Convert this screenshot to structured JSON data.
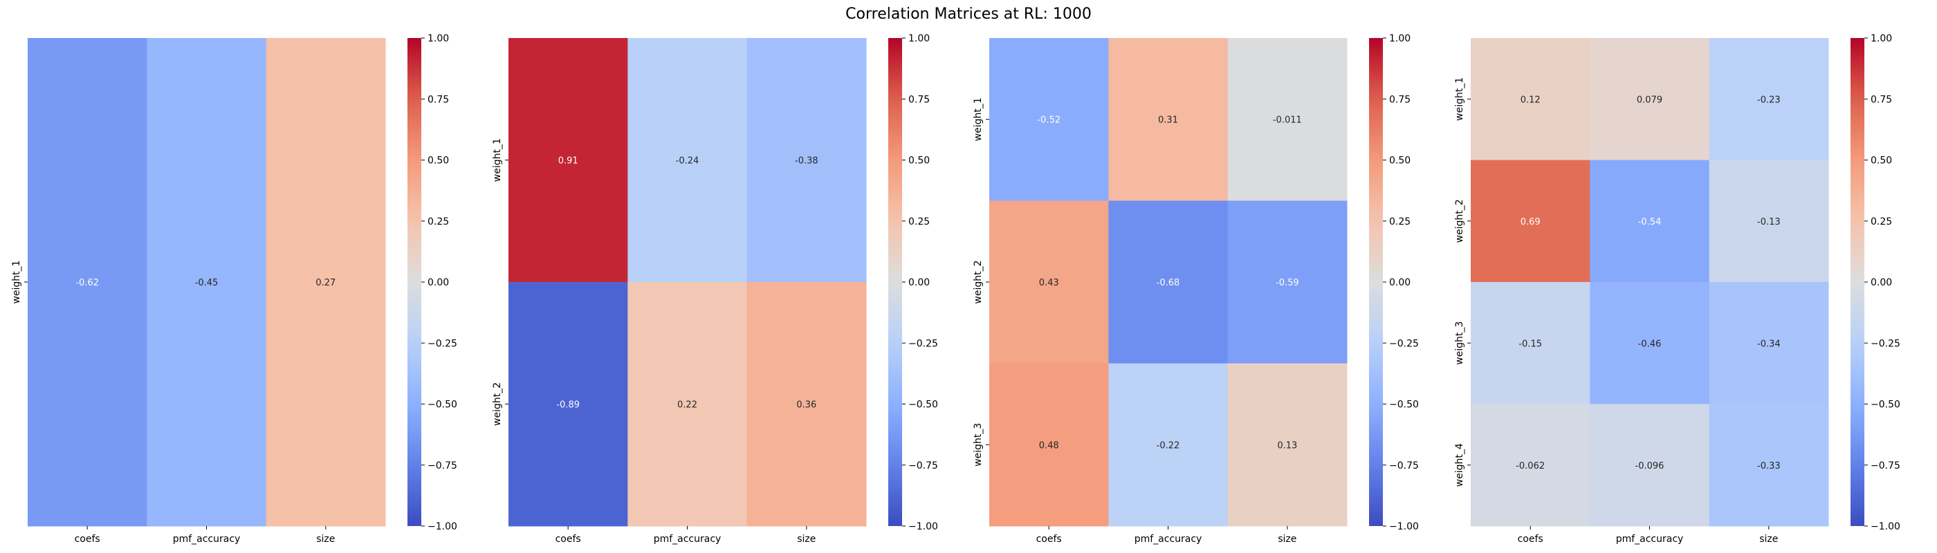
{
  "figure": {
    "title": "Correlation Matrices at RL: 1000"
  },
  "colorbar": {
    "ticks": [
      "1.00",
      "0.75",
      "0.50",
      "0.25",
      "0.00",
      "−0.25",
      "−0.50",
      "−0.75",
      "−1.00"
    ],
    "tick_values": [
      1.0,
      0.75,
      0.5,
      0.25,
      0.0,
      -0.25,
      -0.5,
      -0.75,
      -1.0
    ],
    "range": [
      -1.0,
      1.0
    ],
    "colormap": "coolwarm"
  },
  "chart_data": [
    {
      "type": "heatmap",
      "title": "",
      "x_categories": [
        "coefs",
        "pmf_accuracy",
        "size"
      ],
      "y_categories": [
        "weight_1"
      ],
      "values": [
        [
          -0.62,
          -0.45,
          0.27
        ]
      ],
      "annotations": [
        [
          "-0.62",
          "-0.45",
          "0.27"
        ]
      ],
      "vlim": [
        -1.0,
        1.0
      ]
    },
    {
      "type": "heatmap",
      "title": "",
      "x_categories": [
        "coefs",
        "pmf_accuracy",
        "size"
      ],
      "y_categories": [
        "weight_1",
        "weight_2"
      ],
      "values": [
        [
          0.91,
          -0.24,
          -0.38
        ],
        [
          -0.89,
          0.22,
          0.36
        ]
      ],
      "annotations": [
        [
          "0.91",
          "-0.24",
          "-0.38"
        ],
        [
          "-0.89",
          "0.22",
          "0.36"
        ]
      ],
      "vlim": [
        -1.0,
        1.0
      ]
    },
    {
      "type": "heatmap",
      "title": "",
      "x_categories": [
        "coefs",
        "pmf_accuracy",
        "size"
      ],
      "y_categories": [
        "weight_1",
        "weight_2",
        "weight_3"
      ],
      "values": [
        [
          -0.52,
          0.31,
          -0.011
        ],
        [
          0.43,
          -0.68,
          -0.59
        ],
        [
          0.48,
          -0.22,
          0.13
        ]
      ],
      "annotations": [
        [
          "-0.52",
          "0.31",
          "-0.011"
        ],
        [
          "0.43",
          "-0.68",
          "-0.59"
        ],
        [
          "0.48",
          "-0.22",
          "0.13"
        ]
      ],
      "vlim": [
        -1.0,
        1.0
      ]
    },
    {
      "type": "heatmap",
      "title": "",
      "x_categories": [
        "coefs",
        "pmf_accuracy",
        "size"
      ],
      "y_categories": [
        "weight_1",
        "weight_2",
        "weight_3",
        "weight_4"
      ],
      "values": [
        [
          0.12,
          0.079,
          -0.23
        ],
        [
          0.69,
          -0.54,
          -0.13
        ],
        [
          -0.15,
          -0.46,
          -0.34
        ],
        [
          -0.062,
          -0.096,
          -0.33
        ]
      ],
      "annotations": [
        [
          "0.12",
          "0.079",
          "-0.23"
        ],
        [
          "0.69",
          "-0.54",
          "-0.13"
        ],
        [
          "-0.15",
          "-0.46",
          "-0.34"
        ],
        [
          "-0.062",
          "-0.096",
          "-0.33"
        ]
      ],
      "vlim": [
        -1.0,
        1.0
      ]
    }
  ]
}
